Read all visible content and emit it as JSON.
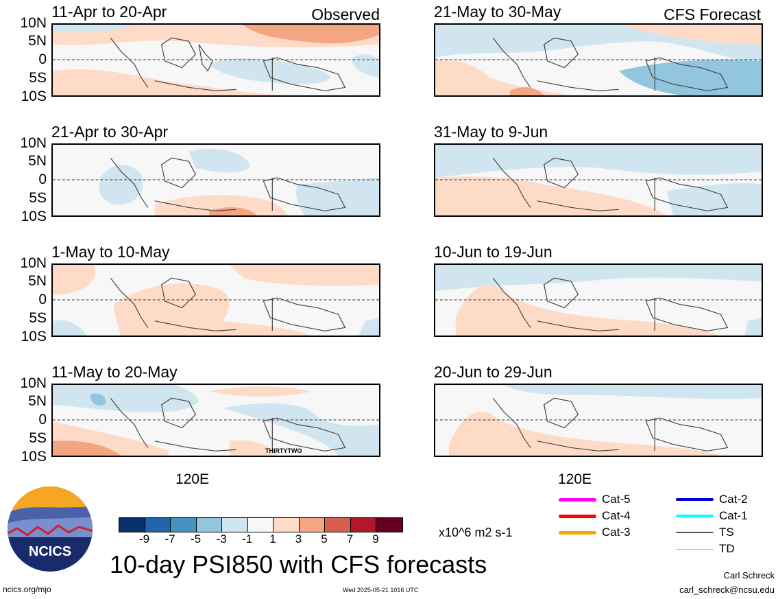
{
  "main_title": "10-day PSI850 with CFS forecasts",
  "left_column_label": "Observed",
  "right_column_label": "CFS Forecast",
  "y_axis_labels": [
    "10N",
    "5N",
    "0",
    "5S",
    "10S"
  ],
  "x_axis_label": "120E",
  "left_panels": [
    {
      "title": "11-Apr to 20-Apr"
    },
    {
      "title": "21-Apr to 30-Apr"
    },
    {
      "title": "1-May to 10-May"
    },
    {
      "title": "11-May to 20-May",
      "annotation": "THIRTYTWO"
    }
  ],
  "right_panels": [
    {
      "title": "21-May to 30-May"
    },
    {
      "title": "31-May to 9-Jun"
    },
    {
      "title": "10-Jun to 19-Jun"
    },
    {
      "title": "20-Jun to 29-Jun"
    }
  ],
  "colorbar": {
    "units": "x10^6 m2 s-1",
    "ticks": [
      "-9",
      "-7",
      "-5",
      "-3",
      "-1",
      "1",
      "3",
      "5",
      "7",
      "9"
    ],
    "colors": [
      "#08306b",
      "#2166ac",
      "#4393c3",
      "#92c5de",
      "#d1e5f0",
      "#f7f7f7",
      "#fddbc7",
      "#f4a582",
      "#d6604d",
      "#b2182b",
      "#67001f"
    ]
  },
  "storm_legend": [
    {
      "label": "Cat-5",
      "color": "#ff00ff",
      "width": 5
    },
    {
      "label": "Cat-4",
      "color": "#ff0000",
      "width": 5
    },
    {
      "label": "Cat-3",
      "color": "#ffa500",
      "width": 5
    },
    {
      "label": "Cat-2",
      "color": "#0000cc",
      "width": 4
    },
    {
      "label": "Cat-1",
      "color": "#00ffff",
      "width": 4
    },
    {
      "label": "TS",
      "color": "#555555",
      "width": 2
    },
    {
      "label": "TD",
      "color": "#aaaaaa",
      "width": 1
    }
  ],
  "logo_text": "NCICS",
  "footer": {
    "url": "ncics.org/mjo",
    "timestamp": "Wed 2025-05-21 1016 UTC",
    "author": "Carl Schreck",
    "email": "carl_schreck@ncsu.edu"
  }
}
